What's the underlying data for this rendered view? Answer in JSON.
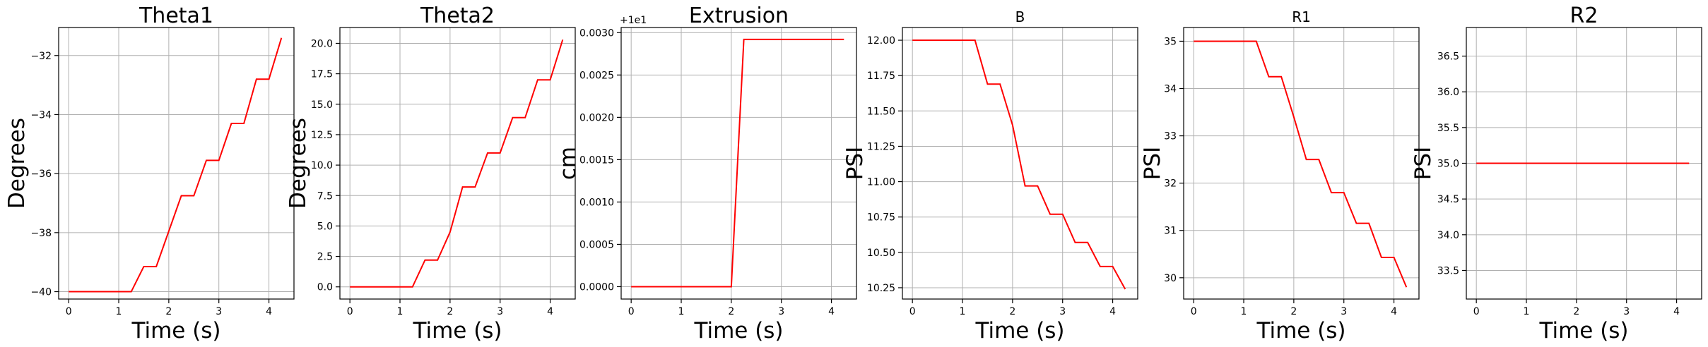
{
  "chart_data": [
    {
      "type": "line",
      "title": "Theta1",
      "xlabel": "Time (s)",
      "ylabel": "Degrees",
      "xlim": [
        -0.2,
        4.5
      ],
      "ylim": [
        -40.25,
        -31.05
      ],
      "xticks": [
        0,
        1,
        2,
        3,
        4
      ],
      "yticks": [
        -40,
        -38,
        -36,
        -34,
        -32
      ],
      "ytick_labels": [
        "−40",
        "−38",
        "−36",
        "−34",
        "−32"
      ],
      "grid": true,
      "series": [
        {
          "color": "#ff0000",
          "x": [
            0,
            1.25,
            1.5,
            1.75,
            2.25,
            2.5,
            2.75,
            3.0,
            3.25,
            3.5,
            3.75,
            4.0,
            4.25
          ],
          "y": [
            -40.0,
            -40.0,
            -39.15,
            -39.15,
            -36.75,
            -36.75,
            -35.55,
            -35.55,
            -34.3,
            -34.3,
            -32.8,
            -32.8,
            -31.4
          ]
        }
      ]
    },
    {
      "type": "line",
      "title": "Theta2",
      "xlabel": "Time (s)",
      "ylabel": "Degrees",
      "xlim": [
        -0.2,
        4.5
      ],
      "ylim": [
        -1.0,
        21.3
      ],
      "xticks": [
        0,
        1,
        2,
        3,
        4
      ],
      "yticks": [
        0,
        2.5,
        5,
        7.5,
        10,
        12.5,
        15,
        17.5,
        20
      ],
      "ytick_labels": [
        "0.0",
        "2.5",
        "5.0",
        "7.5",
        "10.0",
        "12.5",
        "15.0",
        "17.5",
        "20.0"
      ],
      "grid": true,
      "series": [
        {
          "color": "#ff0000",
          "x": [
            0,
            1.25,
            1.5,
            1.75,
            2.0,
            2.25,
            2.5,
            2.75,
            3.0,
            3.25,
            3.5,
            3.75,
            4.0,
            4.25
          ],
          "y": [
            0,
            0,
            2.2,
            2.2,
            4.5,
            8.2,
            8.2,
            11.0,
            11.0,
            13.9,
            13.9,
            17.0,
            17.0,
            20.3
          ]
        }
      ]
    },
    {
      "type": "line",
      "title": "Extrusion",
      "xlabel": "Time (s)",
      "ylabel": "cm",
      "offset_text": "+1e1",
      "xlim": [
        -0.2,
        4.5
      ],
      "ylim": [
        -0.000146,
        0.003061
      ],
      "xticks": [
        0,
        1,
        2,
        3,
        4
      ],
      "yticks": [
        0,
        0.0005,
        0.001,
        0.0015,
        0.002,
        0.0025,
        0.003
      ],
      "ytick_labels": [
        "0.0000",
        "0.0005",
        "0.0010",
        "0.0015",
        "0.0020",
        "0.0025",
        "0.0030"
      ],
      "grid": true,
      "series": [
        {
          "color": "#ff0000",
          "x": [
            0,
            2.0,
            2.25,
            4.25
          ],
          "y": [
            0,
            0,
            0.00292,
            0.00292
          ]
        }
      ]
    },
    {
      "type": "line",
      "title": "B",
      "xlabel": "Time (s)",
      "ylabel": "PSI",
      "xlim": [
        -0.2,
        4.5
      ],
      "ylim": [
        10.17,
        12.09
      ],
      "xticks": [
        0,
        1,
        2,
        3,
        4
      ],
      "yticks": [
        10.25,
        10.5,
        10.75,
        11,
        11.25,
        11.5,
        11.75,
        12
      ],
      "ytick_labels": [
        "10.25",
        "10.50",
        "10.75",
        "11.00",
        "11.25",
        "11.50",
        "11.75",
        "12.00"
      ],
      "grid": true,
      "series": [
        {
          "color": "#ff0000",
          "x": [
            0,
            1.25,
            1.5,
            1.75,
            2.0,
            2.25,
            2.5,
            2.75,
            3.0,
            3.25,
            3.5,
            3.75,
            4.0,
            4.25
          ],
          "y": [
            12.0,
            12.0,
            11.69,
            11.69,
            11.4,
            10.97,
            10.97,
            10.77,
            10.77,
            10.57,
            10.57,
            10.4,
            10.4,
            10.24
          ]
        }
      ]
    },
    {
      "type": "line",
      "title": "R1",
      "xlabel": "Time (s)",
      "ylabel": "PSI",
      "xlim": [
        -0.2,
        4.5
      ],
      "ylim": [
        29.55,
        35.29
      ],
      "xticks": [
        0,
        1,
        2,
        3,
        4
      ],
      "yticks": [
        30,
        31,
        32,
        33,
        34,
        35
      ],
      "ytick_labels": [
        "30",
        "31",
        "32",
        "33",
        "34",
        "35"
      ],
      "grid": true,
      "series": [
        {
          "color": "#ff0000",
          "x": [
            0,
            1.25,
            1.5,
            1.75,
            2.0,
            2.25,
            2.5,
            2.75,
            3.0,
            3.25,
            3.5,
            3.75,
            4.0,
            4.25
          ],
          "y": [
            35.0,
            35.0,
            34.25,
            34.25,
            33.4,
            32.5,
            32.5,
            31.8,
            31.8,
            31.15,
            31.15,
            30.43,
            30.43,
            29.8
          ]
        }
      ]
    },
    {
      "type": "line",
      "title": "R2",
      "xlabel": "Time (s)",
      "ylabel": "PSI",
      "xlim": [
        -0.2,
        4.5
      ],
      "ylim": [
        33.1,
        36.9
      ],
      "xticks": [
        0,
        1,
        2,
        3,
        4
      ],
      "yticks": [
        33.5,
        34,
        34.5,
        35,
        35.5,
        36,
        36.5
      ],
      "ytick_labels": [
        "33.5",
        "34.0",
        "34.5",
        "35.0",
        "35.5",
        "36.0",
        "36.5"
      ],
      "grid": true,
      "series": [
        {
          "color": "#ff0000",
          "x": [
            0,
            4.25
          ],
          "y": [
            35.0,
            35.0
          ]
        }
      ]
    }
  ]
}
